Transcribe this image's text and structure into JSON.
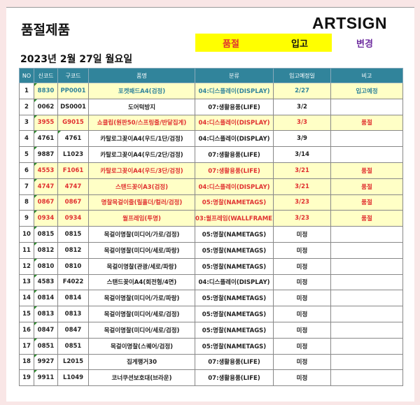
{
  "title": "품절제품",
  "brand": "ARTSIGN",
  "legend": {
    "soldout": "품절",
    "restock": "입고",
    "changed": "변경"
  },
  "colors": {
    "header": "#31849b",
    "highlight": "#ffffc6",
    "soldout": "#e03030",
    "restock": "#31849b",
    "changed": "#7030a0",
    "legend_bg": "#ffff00"
  },
  "date": "2023년 2월 27일 월요일",
  "columns": [
    "NO",
    "신코드",
    "구코드",
    "품명",
    "분류",
    "입고예정일",
    "비고"
  ],
  "rows": [
    {
      "no": "1",
      "new": "8830",
      "old": "PP0001",
      "name": "포켓패드A4(검정)",
      "cat": "04:디스플레이(DISPLAY)",
      "date": "2/27",
      "note": "입고예정",
      "style": "teal"
    },
    {
      "no": "2",
      "new": "0062",
      "old": "DS0001",
      "name": "도어턱방지",
      "cat": "07:생활용품(LIFE)",
      "date": "3/2",
      "note": "",
      "style": ""
    },
    {
      "no": "3",
      "new": "3955",
      "old": "G9015",
      "name": "쇼클립(원판50/스프링줄/반달집게)",
      "cat": "04:디스플레이(DISPLAY)",
      "date": "3/3",
      "note": "품절",
      "style": "red"
    },
    {
      "no": "4",
      "new": "4761",
      "old": "4761",
      "name": "카탈로그꽂이A4(우드/1단/검정)",
      "cat": "04:디스플레이(DISPLAY)",
      "date": "3/9",
      "note": "",
      "style": ""
    },
    {
      "no": "5",
      "new": "9887",
      "old": "L1023",
      "name": "카탈로그꽂이A4(우드/2단/검정)",
      "cat": "07:생활용품(LIFE)",
      "date": "3/14",
      "note": "",
      "style": ""
    },
    {
      "no": "6",
      "new": "4553",
      "old": "F1061",
      "name": "카탈로그꽂이A4(우드/3단/검정)",
      "cat": "07:생활용품(LIFE)",
      "date": "3/21",
      "note": "품절",
      "style": "red"
    },
    {
      "no": "7",
      "new": "4747",
      "old": "4747",
      "name": "스탠드꽂이A3(검정)",
      "cat": "04:디스플레이(DISPLAY)",
      "date": "3/21",
      "note": "품절",
      "style": "red"
    },
    {
      "no": "8",
      "new": "0867",
      "old": "0867",
      "name": "명찰목걸이줄(릴홀더/컬러/검정)",
      "cat": "05:명찰(NAMETAGS)",
      "date": "3/23",
      "note": "품절",
      "style": "red"
    },
    {
      "no": "9",
      "new": "0934",
      "old": "0934",
      "name": "월프레임(투명)",
      "cat": "03:월프레임(WALLFRAME)",
      "date": "3/23",
      "note": "품절",
      "style": "red"
    },
    {
      "no": "10",
      "new": "0815",
      "old": "0815",
      "name": "목걸이명찰(미디어/가로/검정)",
      "cat": "05:명찰(NAMETAGS)",
      "date": "미정",
      "note": "",
      "style": ""
    },
    {
      "no": "11",
      "new": "0812",
      "old": "0812",
      "name": "목걸이명찰(미디어/세로/파랑)",
      "cat": "05:명찰(NAMETAGS)",
      "date": "미정",
      "note": "",
      "style": ""
    },
    {
      "no": "12",
      "new": "0810",
      "old": "0810",
      "name": "목걸이명찰(관광/세로/파랑)",
      "cat": "05:명찰(NAMETAGS)",
      "date": "미정",
      "note": "",
      "style": ""
    },
    {
      "no": "13",
      "new": "4583",
      "old": "F4022",
      "name": "스탠드꽂이A4(회전형/4면)",
      "cat": "04:디스플레이(DISPLAY)",
      "date": "미정",
      "note": "",
      "style": ""
    },
    {
      "no": "14",
      "new": "0814",
      "old": "0814",
      "name": "목걸이명찰(미디어/가로/파랑)",
      "cat": "05:명찰(NAMETAGS)",
      "date": "미정",
      "note": "",
      "style": ""
    },
    {
      "no": "15",
      "new": "0813",
      "old": "0813",
      "name": "목걸이명찰(미디어/세로/검정)",
      "cat": "05:명찰(NAMETAGS)",
      "date": "미정",
      "note": "",
      "style": ""
    },
    {
      "no": "16",
      "new": "0847",
      "old": "0847",
      "name": "목걸이명찰(미디어/세로/검정)",
      "cat": "05:명찰(NAMETAGS)",
      "date": "미정",
      "note": "",
      "style": ""
    },
    {
      "no": "17",
      "new": "0851",
      "old": "0851",
      "name": "목걸이명찰(스퀘어/검정)",
      "cat": "05:명찰(NAMETAGS)",
      "date": "미정",
      "note": "",
      "style": ""
    },
    {
      "no": "18",
      "new": "9927",
      "old": "L2015",
      "name": "집게행거30",
      "cat": "07:생활용품(LIFE)",
      "date": "미정",
      "note": "",
      "style": ""
    },
    {
      "no": "19",
      "new": "9911",
      "old": "L1049",
      "name": "코너쿠션보호대(브라운)",
      "cat": "07:생활용품(LIFE)",
      "date": "미정",
      "note": "",
      "style": ""
    }
  ]
}
